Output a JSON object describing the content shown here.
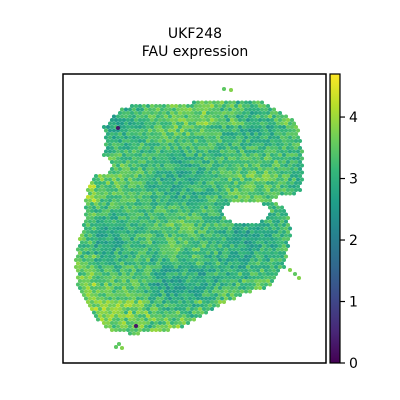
{
  "chart_data": {
    "type": "heatmap",
    "plot_kind": "spatial spot scatter",
    "title_lines": [
      "UKF248",
      "FAU expression"
    ],
    "xlabel": "",
    "ylabel": "",
    "colorbar": {
      "colormap": "viridis",
      "range": [
        0,
        4.7
      ],
      "ticks": [
        0,
        1,
        2,
        3,
        4
      ],
      "tick_labels": [
        "0",
        "1",
        "2",
        "3",
        "4"
      ],
      "stops": [
        "#440154",
        "#482878",
        "#3e4989",
        "#31688e",
        "#26828e",
        "#1f9e89",
        "#35b779",
        "#6ece58",
        "#b5de2b",
        "#fde725"
      ]
    },
    "expression_summary": {
      "typical_value": 3.2,
      "typical_range": [
        2.5,
        3.8
      ],
      "bright_spots_value": 4.3,
      "min_spot_value": 0.3
    }
  }
}
